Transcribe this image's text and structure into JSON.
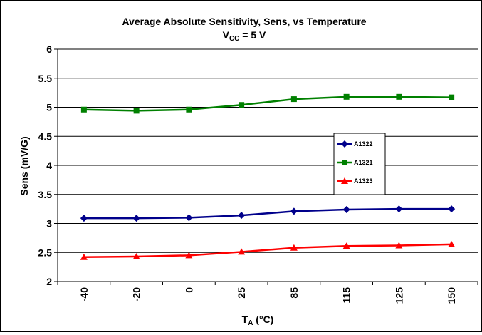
{
  "chart_data": {
    "type": "line",
    "title": "Average Absolute Sensitivity, Sens, vs Temperature",
    "subtitle": {
      "main": "V",
      "sub": "CC",
      "rest": " = 5 V"
    },
    "xlabel": {
      "main": "T",
      "sub": "A",
      "rest": " (°C)"
    },
    "ylabel": "Sens (mV/G)",
    "categories": [
      "-40",
      "-20",
      "0",
      "25",
      "85",
      "115",
      "125",
      "150"
    ],
    "ylim": [
      2,
      6
    ],
    "yticks": [
      "2",
      "2.5",
      "3",
      "3.5",
      "4",
      "4.5",
      "5",
      "5.5",
      "6"
    ],
    "grid": true,
    "legend_position": "right-middle",
    "series": [
      {
        "name": "A1322",
        "color": "#00008B",
        "marker": "diamond",
        "values": [
          3.09,
          3.09,
          3.1,
          3.14,
          3.21,
          3.24,
          3.25,
          3.25
        ]
      },
      {
        "name": "A1321",
        "color": "#008000",
        "marker": "square",
        "values": [
          4.96,
          4.94,
          4.96,
          5.04,
          5.14,
          5.18,
          5.18,
          5.17
        ]
      },
      {
        "name": "A1323",
        "color": "#FF0000",
        "marker": "triangle",
        "values": [
          2.42,
          2.43,
          2.45,
          2.51,
          2.58,
          2.61,
          2.62,
          2.64
        ]
      }
    ]
  }
}
